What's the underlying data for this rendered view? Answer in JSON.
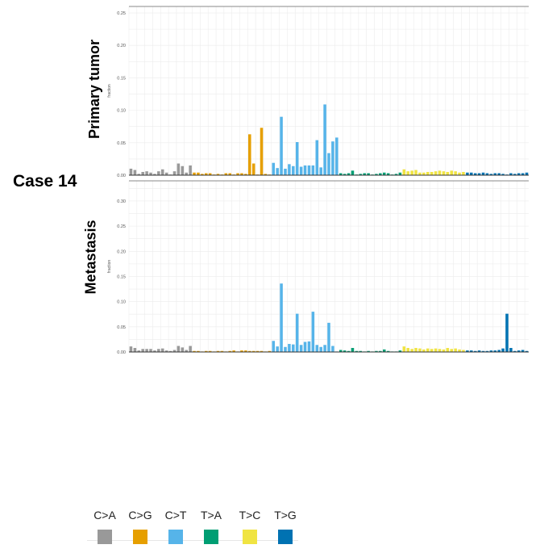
{
  "case_label": "Case 14",
  "row_labels": [
    "Primary tumor",
    "Metastasis"
  ],
  "legend": [
    {
      "label": "C>A",
      "color": "#999999"
    },
    {
      "label": "C>G",
      "color": "#E69F00"
    },
    {
      "label": "C>T",
      "color": "#56B4E9"
    },
    {
      "label": "T>A",
      "color": "#009E73"
    },
    {
      "label": "T>C",
      "color": "#F0E442"
    },
    {
      "label": "T>G",
      "color": "#0072B2"
    }
  ],
  "chart_data": [
    {
      "type": "bar",
      "ylabel": "fraction",
      "ylim": [
        0,
        0.26
      ],
      "yticks": [
        "0.00",
        "0.05",
        "0.10",
        "0.15",
        "0.20",
        "0.25"
      ],
      "grid": true,
      "groups": [
        "C>A",
        "C>G",
        "C>T",
        "T>A",
        "T>C",
        "T>G"
      ],
      "values": [
        0.01,
        0.008,
        0.002,
        0.005,
        0.006,
        0.004,
        0.002,
        0.006,
        0.009,
        0.004,
        0.001,
        0.006,
        0.018,
        0.014,
        0.004,
        0.015,
        0.004,
        0.004,
        0.002,
        0.003,
        0.003,
        0.001,
        0.002,
        0.001,
        0.003,
        0.003,
        0.001,
        0.003,
        0.003,
        0.002,
        0.063,
        0.018,
        0.001,
        0.073,
        0.002,
        0.001,
        0.019,
        0.011,
        0.09,
        0.01,
        0.017,
        0.014,
        0.051,
        0.013,
        0.015,
        0.015,
        0.015,
        0.054,
        0.012,
        0.109,
        0.034,
        0.052,
        0.058,
        0.003,
        0.002,
        0.003,
        0.007,
        0.001,
        0.002,
        0.003,
        0.003,
        0.001,
        0.002,
        0.003,
        0.004,
        0.003,
        0.001,
        0.002,
        0.004,
        0.009,
        0.006,
        0.007,
        0.008,
        0.004,
        0.004,
        0.005,
        0.005,
        0.006,
        0.007,
        0.006,
        0.005,
        0.007,
        0.006,
        0.004,
        0.005,
        0.004,
        0.004,
        0.003,
        0.003,
        0.004,
        0.003,
        0.002,
        0.003,
        0.003,
        0.002,
        0.001,
        0.003,
        0.002,
        0.003,
        0.003,
        0.004
      ]
    },
    {
      "type": "bar",
      "ylabel": "fraction",
      "ylim": [
        0,
        0.34
      ],
      "yticks": [
        "0.00",
        "0.05",
        "0.10",
        "0.15",
        "0.20",
        "0.25",
        "0.30"
      ],
      "grid": true,
      "groups": [
        "C>A",
        "C>G",
        "C>T",
        "T>A",
        "T>C",
        "T>G"
      ],
      "values": [
        0.011,
        0.008,
        0.003,
        0.006,
        0.006,
        0.006,
        0.003,
        0.006,
        0.007,
        0.003,
        0.002,
        0.004,
        0.012,
        0.009,
        0.004,
        0.012,
        0.002,
        0.002,
        0.001,
        0.002,
        0.002,
        0.001,
        0.002,
        0.002,
        0.001,
        0.002,
        0.003,
        0.001,
        0.003,
        0.003,
        0.002,
        0.002,
        0.002,
        0.002,
        0.001,
        0.002,
        0.022,
        0.011,
        0.136,
        0.01,
        0.016,
        0.015,
        0.076,
        0.014,
        0.02,
        0.021,
        0.08,
        0.014,
        0.01,
        0.014,
        0.058,
        0.012,
        0.001,
        0.004,
        0.003,
        0.002,
        0.008,
        0.002,
        0.002,
        0.001,
        0.002,
        0.001,
        0.002,
        0.002,
        0.005,
        0.002,
        0.001,
        0.001,
        0.003,
        0.011,
        0.008,
        0.006,
        0.008,
        0.007,
        0.005,
        0.007,
        0.006,
        0.007,
        0.006,
        0.005,
        0.008,
        0.006,
        0.007,
        0.005,
        0.004,
        0.003,
        0.003,
        0.002,
        0.003,
        0.002,
        0.002,
        0.003,
        0.003,
        0.004,
        0.007,
        0.076,
        0.008,
        0.002,
        0.003,
        0.004,
        0.002
      ]
    }
  ]
}
